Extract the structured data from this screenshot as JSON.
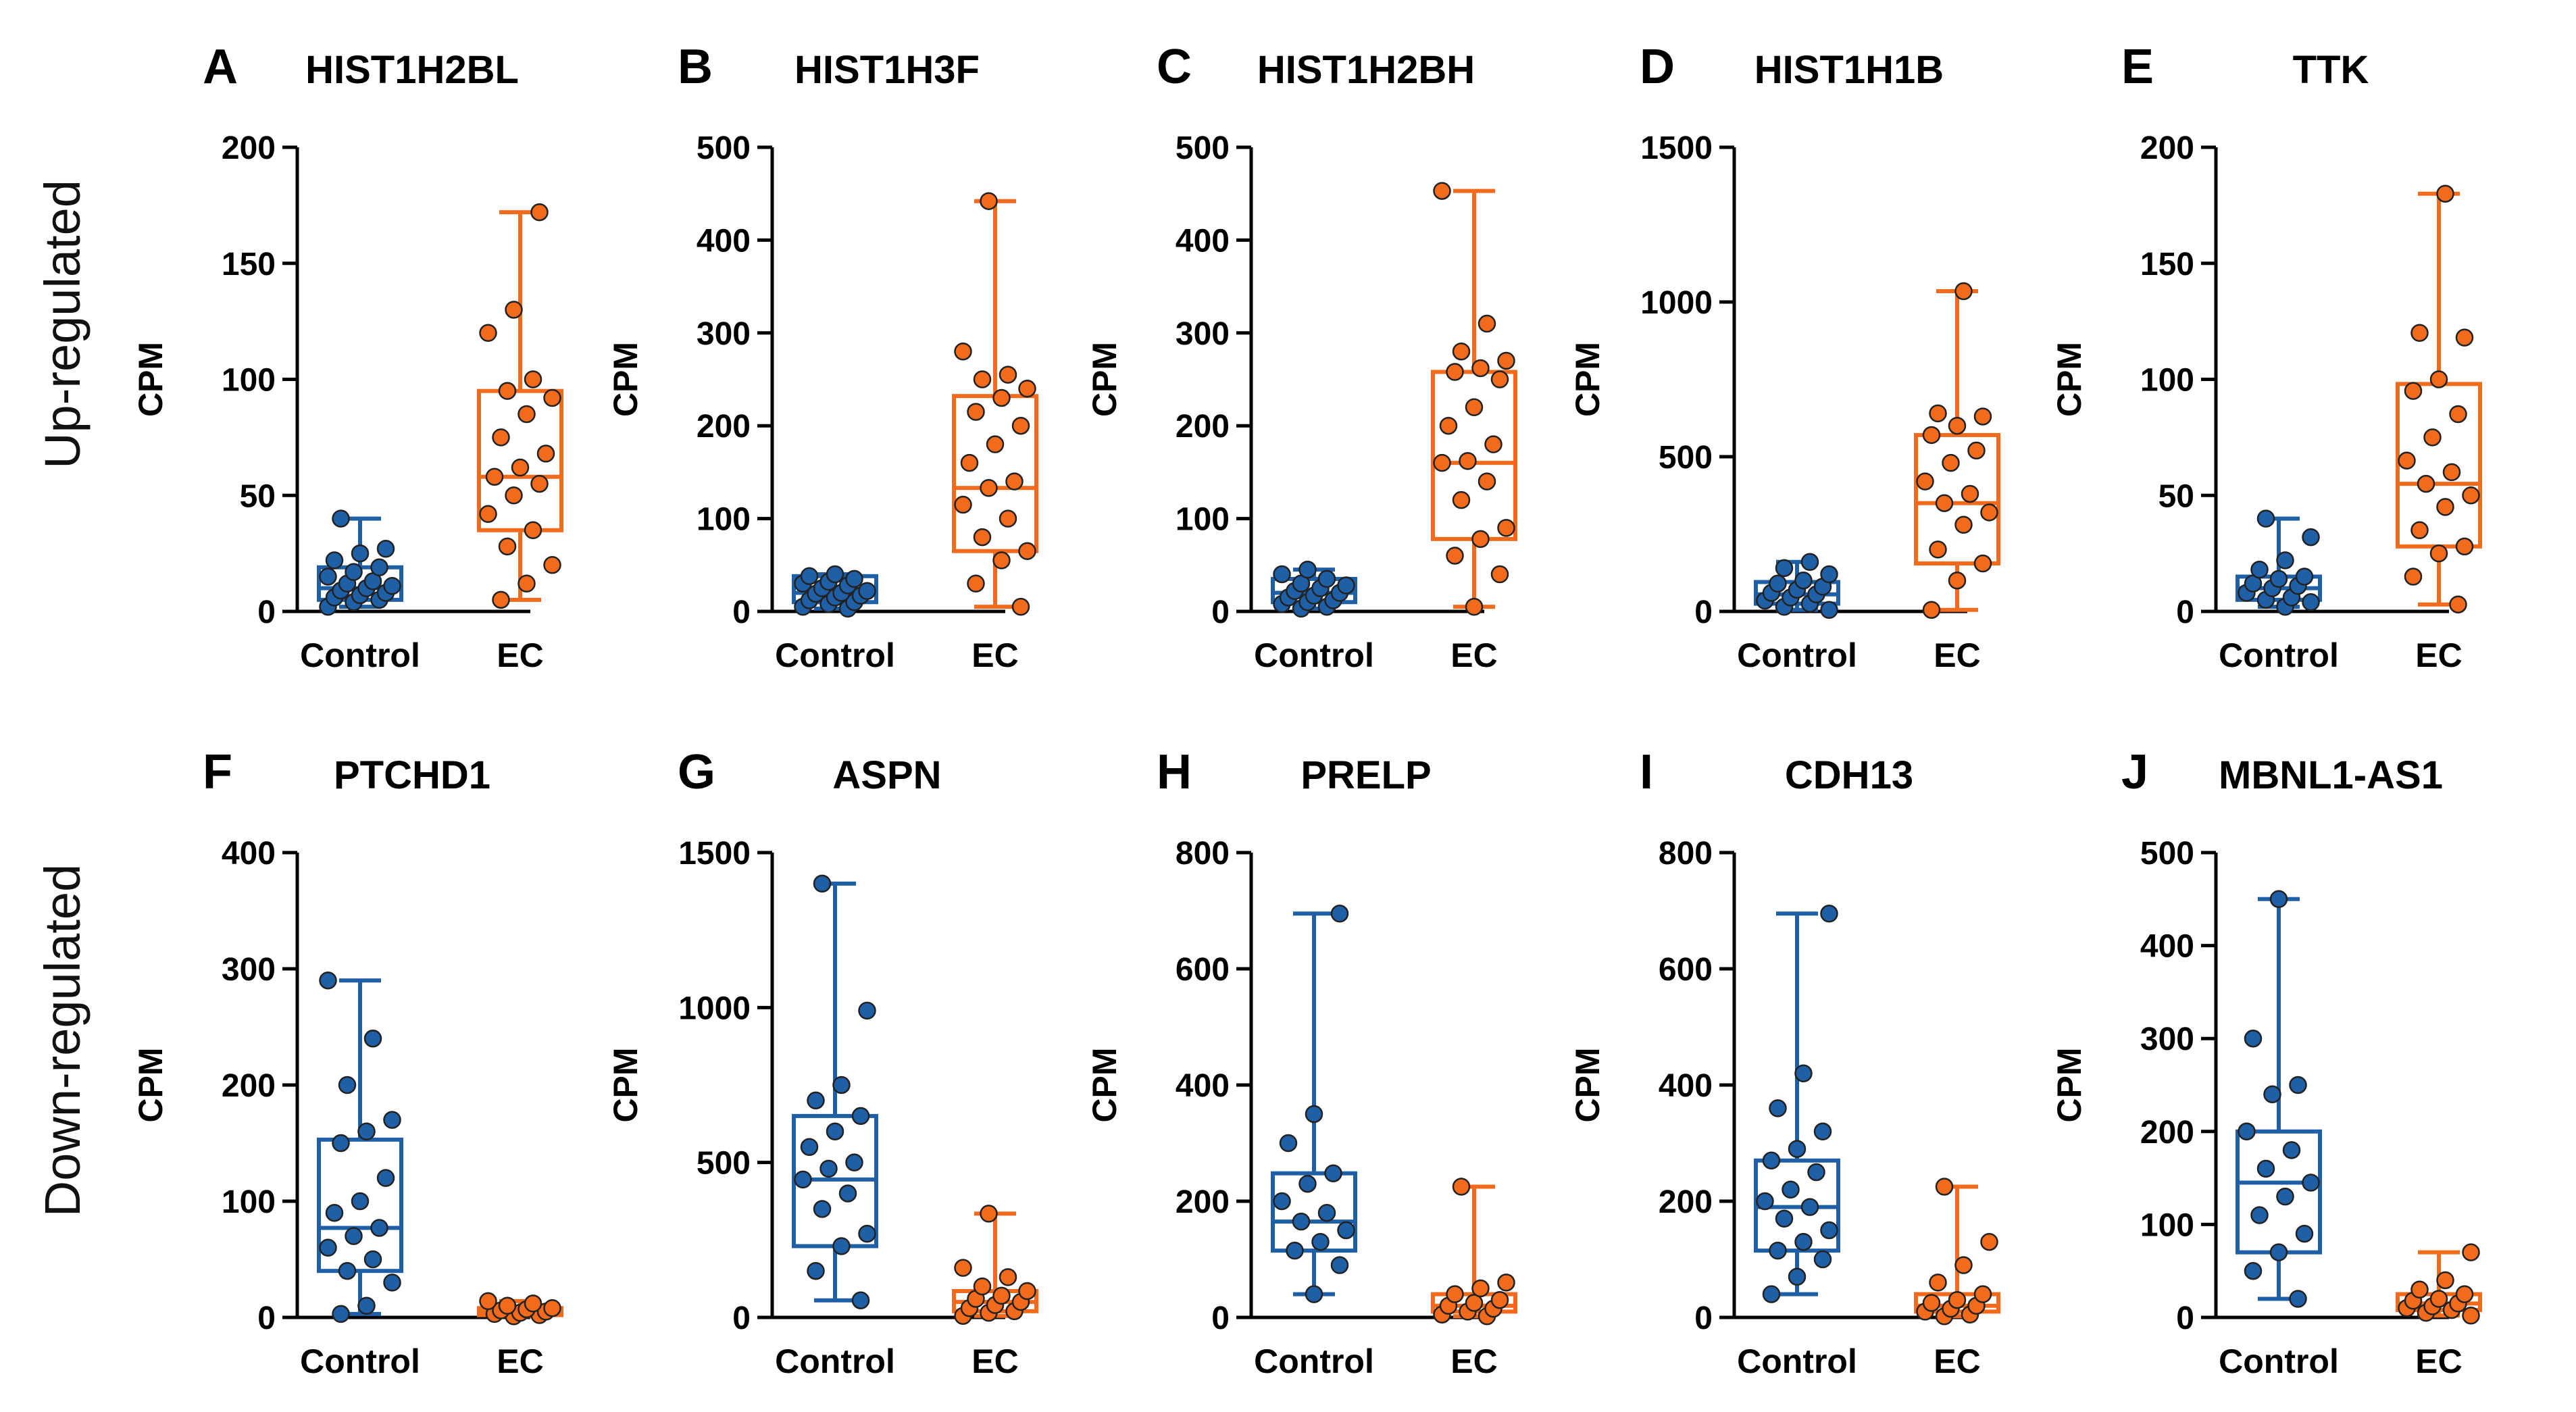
{
  "colors": {
    "control": "#1f5fa6",
    "ec": "#f26a1b",
    "axis": "#000000"
  },
  "row_labels": [
    "Up-regulated",
    "Down-regulated"
  ],
  "categories": [
    "Control",
    "EC"
  ],
  "chart_data": [
    {
      "type": "box",
      "panel": "A",
      "title": "HIST1H2BL",
      "ylabel": "CPM",
      "yticks": [
        0,
        50,
        100,
        150,
        200
      ],
      "ylim": [
        0,
        200
      ],
      "series": [
        {
          "name": "Control",
          "min": 2,
          "q1": 5,
          "median": 10,
          "q3": 19,
          "max": 40,
          "points": [
            2,
            4,
            5,
            6,
            7,
            8,
            9,
            10,
            11,
            12,
            13,
            15,
            17,
            19,
            22,
            25,
            27,
            40
          ]
        },
        {
          "name": "EC",
          "min": 5,
          "q1": 35,
          "median": 58,
          "q3": 95,
          "max": 172,
          "points": [
            5,
            12,
            20,
            28,
            35,
            42,
            50,
            55,
            58,
            62,
            68,
            75,
            85,
            92,
            95,
            100,
            120,
            130,
            172
          ]
        }
      ]
    },
    {
      "type": "box",
      "panel": "B",
      "title": "HIST1H3F",
      "ylabel": "CPM",
      "yticks": [
        0,
        100,
        200,
        300,
        400,
        500
      ],
      "ylim": [
        0,
        500
      ],
      "series": [
        {
          "name": "Control",
          "min": 3,
          "q1": 10,
          "median": 20,
          "q3": 38,
          "max": 40,
          "points": [
            3,
            5,
            8,
            10,
            12,
            15,
            17,
            19,
            20,
            22,
            25,
            28,
            30,
            32,
            35,
            38,
            40
          ]
        },
        {
          "name": "EC",
          "min": 5,
          "q1": 65,
          "median": 133,
          "q3": 232,
          "max": 442,
          "points": [
            5,
            30,
            55,
            65,
            80,
            100,
            115,
            133,
            140,
            160,
            180,
            200,
            215,
            230,
            240,
            250,
            255,
            280,
            442
          ]
        }
      ]
    },
    {
      "type": "box",
      "panel": "C",
      "title": "HIST1H2BH",
      "ylabel": "CPM",
      "yticks": [
        0,
        100,
        200,
        300,
        400,
        500
      ],
      "ylim": [
        0,
        500
      ],
      "series": [
        {
          "name": "Control",
          "min": 3,
          "q1": 10,
          "median": 20,
          "q3": 35,
          "max": 45,
          "points": [
            3,
            5,
            8,
            10,
            12,
            15,
            17,
            20,
            22,
            25,
            28,
            30,
            35,
            40,
            45
          ]
        },
        {
          "name": "EC",
          "min": 5,
          "q1": 78,
          "median": 160,
          "q3": 258,
          "max": 453,
          "points": [
            5,
            40,
            60,
            78,
            90,
            120,
            140,
            160,
            162,
            180,
            200,
            220,
            250,
            258,
            262,
            270,
            280,
            310,
            453
          ]
        }
      ]
    },
    {
      "type": "box",
      "panel": "D",
      "title": "HIST1H1B",
      "ylabel": "CPM",
      "yticks": [
        0,
        500,
        1000,
        1500
      ],
      "ylim": [
        0,
        1500
      ],
      "series": [
        {
          "name": "Control",
          "min": 5,
          "q1": 25,
          "median": 55,
          "q3": 95,
          "max": 160,
          "points": [
            5,
            15,
            25,
            35,
            45,
            55,
            60,
            70,
            80,
            90,
            100,
            120,
            140,
            160
          ]
        },
        {
          "name": "EC",
          "min": 5,
          "q1": 155,
          "median": 350,
          "q3": 570,
          "max": 1035,
          "points": [
            5,
            100,
            155,
            200,
            280,
            320,
            350,
            380,
            420,
            480,
            520,
            570,
            600,
            630,
            640,
            1035
          ]
        }
      ]
    },
    {
      "type": "box",
      "panel": "E",
      "title": "TTK",
      "ylabel": "CPM",
      "yticks": [
        0,
        50,
        100,
        150,
        200
      ],
      "ylim": [
        0,
        200
      ],
      "series": [
        {
          "name": "Control",
          "min": 2,
          "q1": 5,
          "median": 10,
          "q3": 15,
          "max": 40,
          "points": [
            2,
            4,
            5,
            6,
            8,
            10,
            11,
            12,
            14,
            15,
            18,
            22,
            32,
            40
          ]
        },
        {
          "name": "EC",
          "min": 3,
          "q1": 28,
          "median": 55,
          "q3": 98,
          "max": 180,
          "points": [
            3,
            15,
            25,
            28,
            35,
            45,
            50,
            55,
            60,
            65,
            75,
            85,
            95,
            100,
            118,
            120,
            180
          ]
        }
      ]
    },
    {
      "type": "box",
      "panel": "F",
      "title": "PTCHD1",
      "ylabel": "CPM",
      "yticks": [
        0,
        100,
        200,
        300,
        400
      ],
      "ylim": [
        0,
        400
      ],
      "series": [
        {
          "name": "Control",
          "min": 3,
          "q1": 40,
          "median": 77,
          "q3": 153,
          "max": 290,
          "points": [
            3,
            10,
            30,
            40,
            50,
            60,
            70,
            77,
            90,
            100,
            120,
            150,
            160,
            170,
            200,
            240,
            290
          ]
        },
        {
          "name": "EC",
          "min": 1,
          "q1": 2,
          "median": 5,
          "q3": 8,
          "max": 14,
          "points": [
            1,
            2,
            3,
            4,
            5,
            6,
            7,
            8,
            10,
            12,
            14
          ]
        }
      ]
    },
    {
      "type": "box",
      "panel": "G",
      "title": "ASPN",
      "ylabel": "CPM",
      "yticks": [
        0,
        500,
        1000,
        1500
      ],
      "ylim": [
        0,
        1500
      ],
      "series": [
        {
          "name": "Control",
          "min": 55,
          "q1": 230,
          "median": 445,
          "q3": 650,
          "max": 1400,
          "points": [
            55,
            150,
            230,
            270,
            350,
            400,
            445,
            480,
            500,
            550,
            600,
            650,
            700,
            750,
            990,
            1400
          ]
        },
        {
          "name": "EC",
          "min": 5,
          "q1": 20,
          "median": 50,
          "q3": 85,
          "max": 335,
          "points": [
            5,
            15,
            20,
            30,
            40,
            50,
            60,
            70,
            85,
            100,
            130,
            160,
            335
          ]
        }
      ]
    },
    {
      "type": "box",
      "panel": "H",
      "title": "PRELP",
      "ylabel": "CPM",
      "yticks": [
        0,
        200,
        400,
        600,
        800
      ],
      "ylim": [
        0,
        800
      ],
      "series": [
        {
          "name": "Control",
          "min": 40,
          "q1": 115,
          "median": 165,
          "q3": 248,
          "max": 695,
          "points": [
            40,
            90,
            115,
            130,
            150,
            165,
            180,
            200,
            230,
            248,
            300,
            350,
            695
          ]
        },
        {
          "name": "EC",
          "min": 2,
          "q1": 10,
          "median": 20,
          "q3": 40,
          "max": 225,
          "points": [
            2,
            5,
            10,
            15,
            20,
            25,
            30,
            40,
            50,
            60,
            225
          ]
        }
      ]
    },
    {
      "type": "box",
      "panel": "I",
      "title": "CDH13",
      "ylabel": "CPM",
      "yticks": [
        0,
        200,
        400,
        600,
        800
      ],
      "ylim": [
        0,
        800
      ],
      "series": [
        {
          "name": "Control",
          "min": 40,
          "q1": 115,
          "median": 190,
          "q3": 270,
          "max": 695,
          "points": [
            40,
            70,
            100,
            115,
            130,
            150,
            170,
            190,
            200,
            220,
            250,
            270,
            290,
            320,
            360,
            420,
            695
          ]
        },
        {
          "name": "EC",
          "min": 2,
          "q1": 10,
          "median": 20,
          "q3": 40,
          "max": 225,
          "points": [
            2,
            5,
            10,
            15,
            20,
            25,
            30,
            40,
            60,
            90,
            130,
            225
          ]
        }
      ]
    },
    {
      "type": "box",
      "panel": "J",
      "title": "MBNL1-AS1",
      "ylabel": "CPM",
      "yticks": [
        0,
        100,
        200,
        300,
        400,
        500
      ],
      "ylim": [
        0,
        500
      ],
      "series": [
        {
          "name": "Control",
          "min": 20,
          "q1": 70,
          "median": 145,
          "q3": 200,
          "max": 450,
          "points": [
            20,
            50,
            70,
            90,
            110,
            130,
            145,
            160,
            180,
            200,
            240,
            250,
            300,
            450
          ]
        },
        {
          "name": "EC",
          "min": 2,
          "q1": 8,
          "median": 15,
          "q3": 25,
          "max": 70,
          "points": [
            2,
            5,
            8,
            10,
            12,
            15,
            18,
            20,
            25,
            30,
            40,
            70
          ]
        }
      ]
    }
  ]
}
